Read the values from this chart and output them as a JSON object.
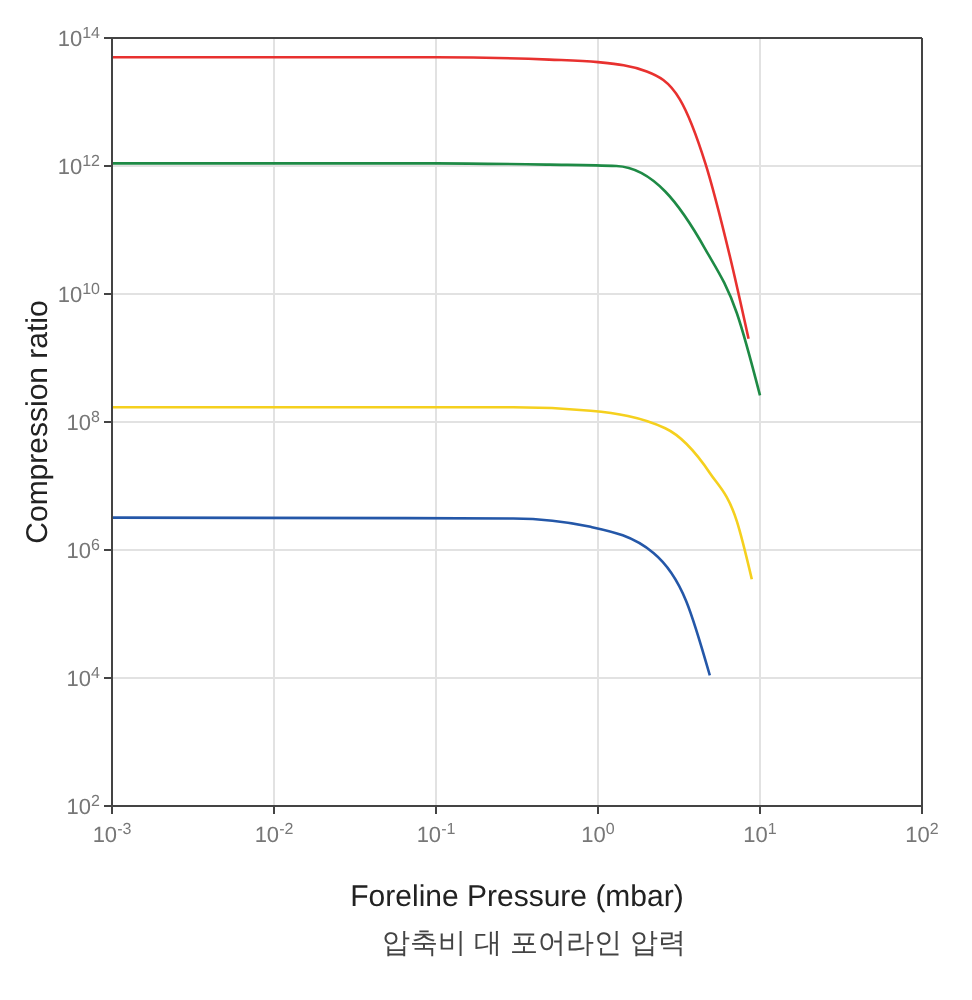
{
  "chart_data": {
    "type": "line",
    "xlabel": "Foreline Pressure (mbar)",
    "ylabel": "Compression ratio",
    "annotations": [
      "압축비 대 포어라인 압력"
    ],
    "log": "xy",
    "grid": true,
    "marker": "none",
    "line_style": "solid",
    "xlim": [
      0.001,
      100
    ],
    "xticks": [
      {
        "value": 0.001,
        "label": "10$^{-3}$"
      },
      {
        "value": 0.01,
        "label": "10$^{-2}$"
      },
      {
        "value": 0.1,
        "label": "10$^{-1}$"
      },
      {
        "value": 1,
        "label": "10$^{0}$"
      },
      {
        "value": 10,
        "label": "10$^{1}$"
      },
      {
        "value": 100,
        "label": "10$^{2}$"
      }
    ],
    "ylim": [
      100,
      100000000000000
    ],
    "yticks": [
      {
        "value": 100,
        "label": "10$^{2}$"
      },
      {
        "value": 10000,
        "label": "10$^{4}$"
      },
      {
        "value": 1000000,
        "label": "10$^{6}$"
      },
      {
        "value": 100000000,
        "label": "10$^{8}$"
      },
      {
        "value": 10000000000,
        "label": "10$^{10}$"
      },
      {
        "value": 1000000000000,
        "label": "10$^{12}$"
      },
      {
        "value": 100000000000000,
        "label": "10$^{14}$"
      }
    ],
    "series": [
      {
        "color": "#e8312f",
        "x": [
          0.001,
          0.1,
          0.5,
          1,
          2,
          3.2,
          4.6,
          6.5,
          8.5
        ],
        "values": [
          50000000000000.0,
          50000000000000.0,
          46000000000000.0,
          42000000000000.0,
          30000000000000.0,
          11000000000000.0,
          1100000000000.0,
          40000000000.0,
          2000000000.0
        ]
      },
      {
        "color": "#1e8a45",
        "x": [
          0.001,
          0.1,
          0.5,
          1.3,
          2.6,
          4.6,
          7.2,
          10
        ],
        "values": [
          1100000000000.0,
          1100000000000.0,
          1050000000000.0,
          1000000000000.0,
          400000000000.0,
          50000000000.0,
          5000000000.0,
          260000000.0
        ]
      },
      {
        "color": "#f5d01e",
        "x": [
          0.001,
          0.3,
          0.9,
          2.6,
          4.9,
          7.2,
          8.9
        ],
        "values": [
          170000000.0,
          170000000.0,
          150000000.0,
          80000000.0,
          16000000.0,
          2800000.0,
          350000.0
        ]
      },
      {
        "color": "#2457a8",
        "x": [
          0.001,
          0.3,
          0.9,
          2.2,
          3.5,
          4.9
        ],
        "values": [
          3200000.0,
          3100000.0,
          2300000.0,
          900000.0,
          160000.0,
          11000.0
        ]
      }
    ]
  }
}
